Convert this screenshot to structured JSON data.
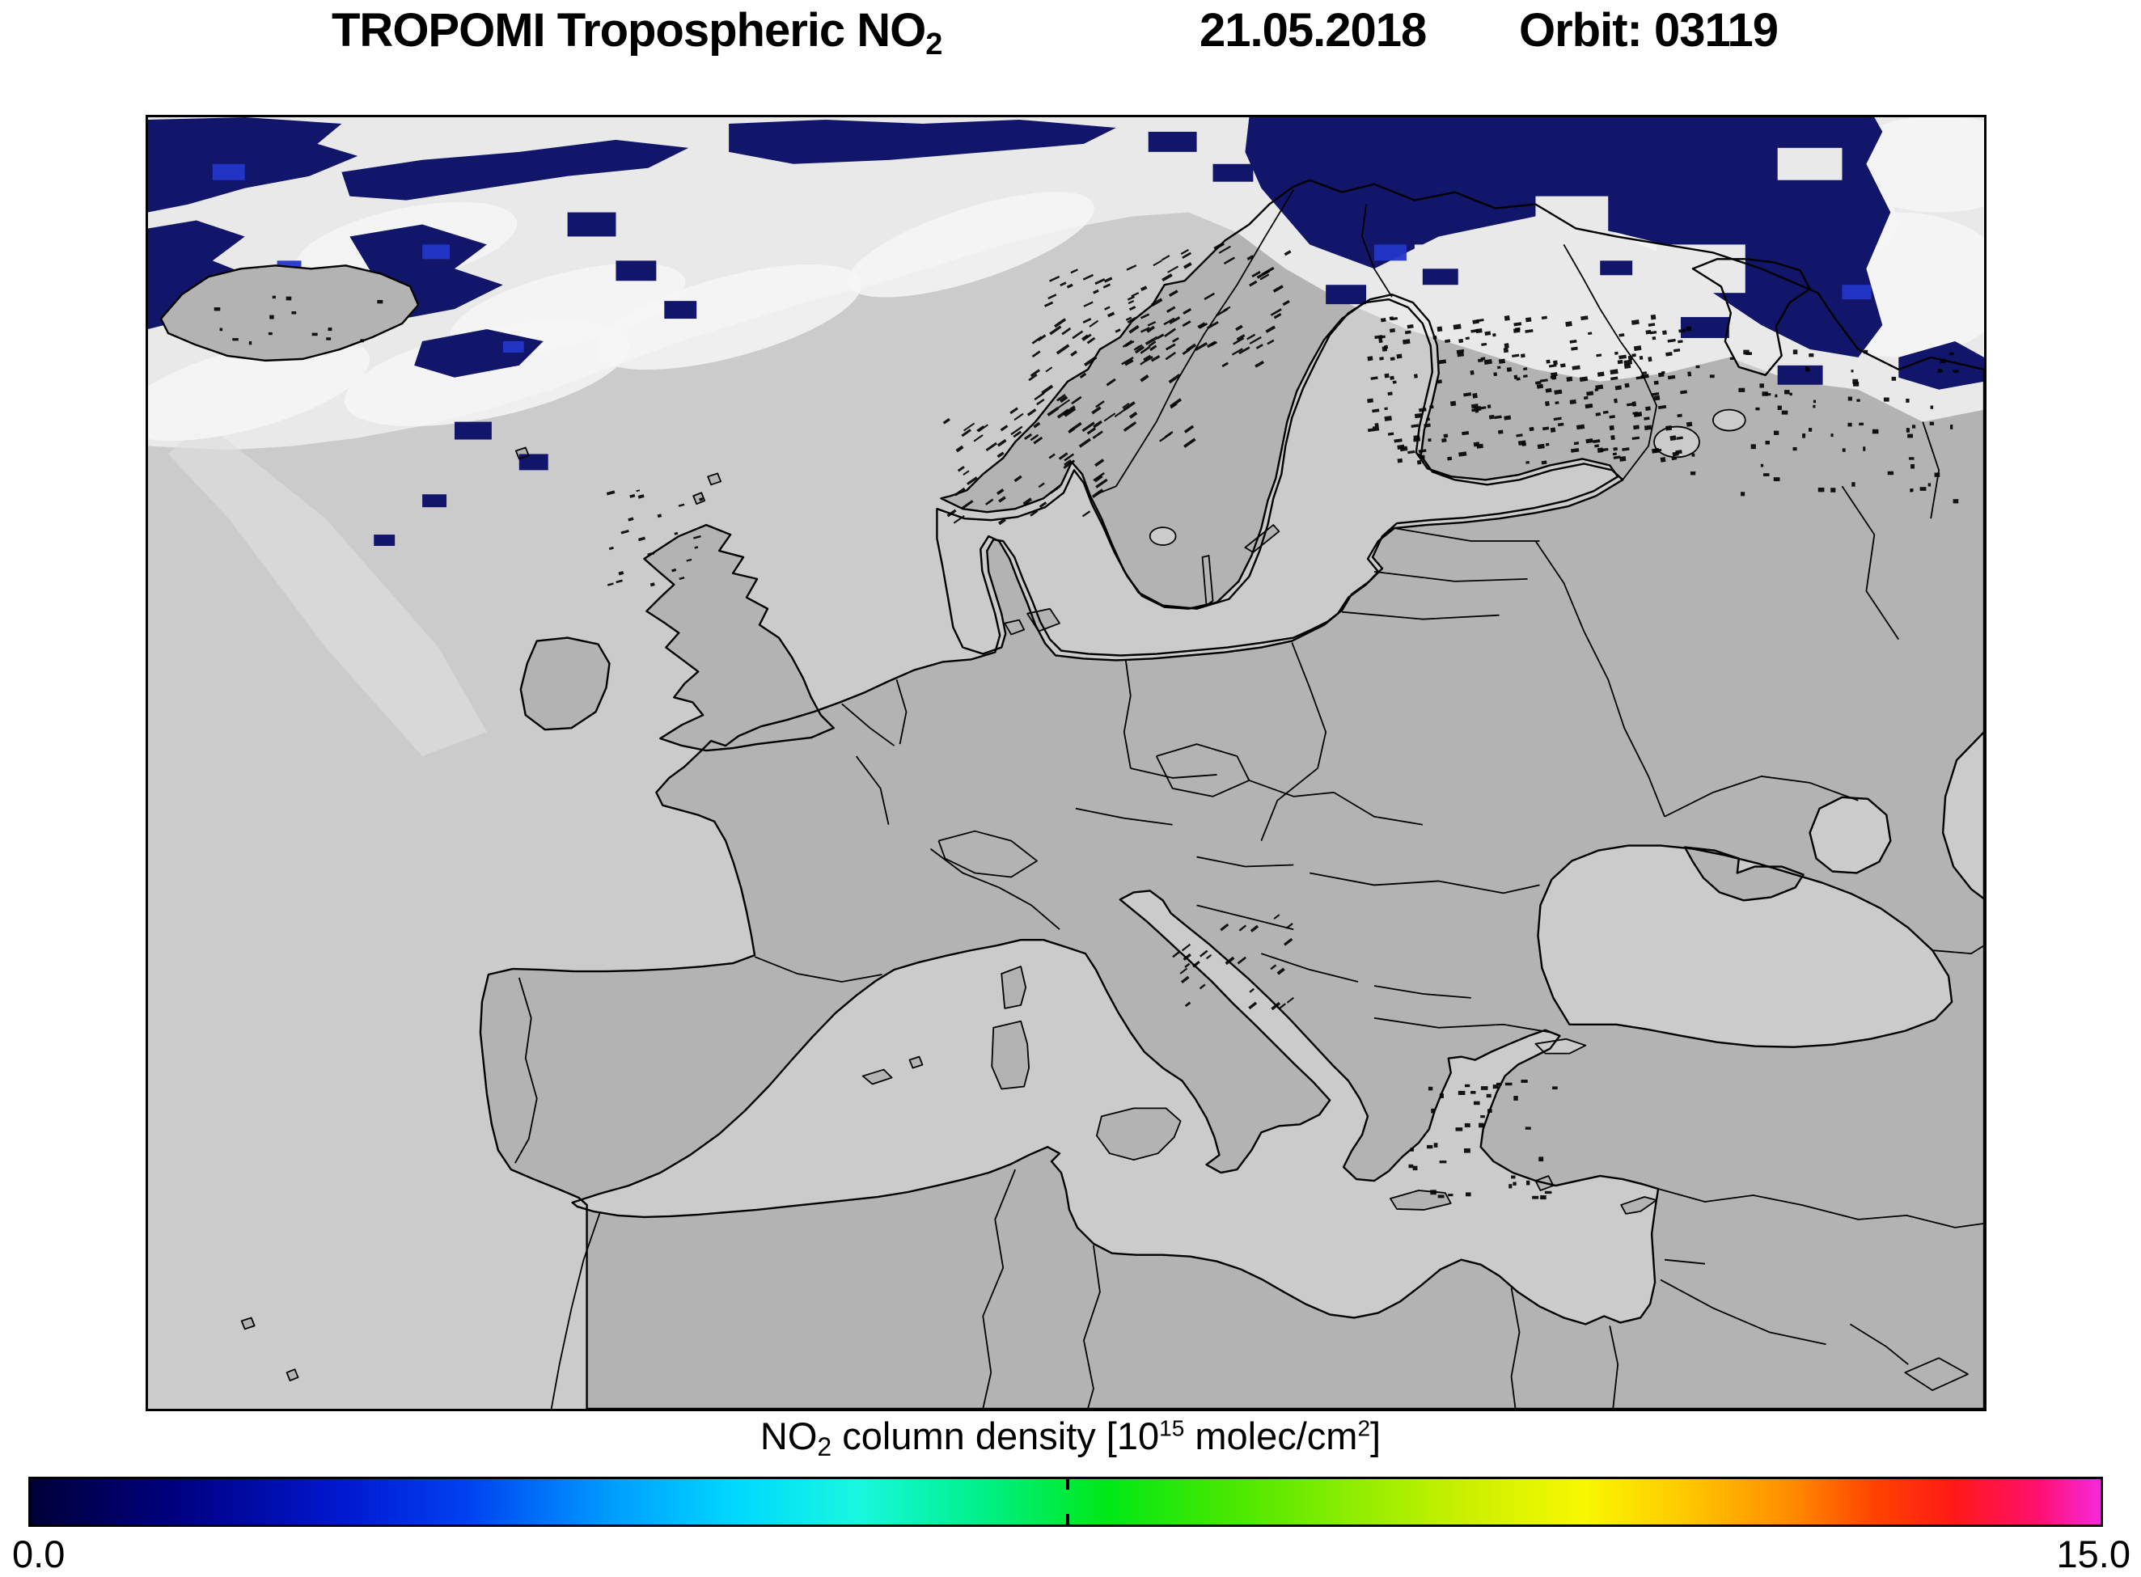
{
  "title": {
    "instrument": "TROPOMI Tropospheric NO",
    "instrument_sub": "2",
    "date": "21.05.2018",
    "orbit": "Orbit: 03119"
  },
  "colorbar": {
    "label_pre": "NO",
    "label_sub": "2",
    "label_mid": " column density [10",
    "label_sup1": "15",
    "label_unit": " molec/cm",
    "label_sup2": "2",
    "label_end": "]",
    "min": "0.0",
    "max": "15.0"
  },
  "colors": {
    "sea": "#cbcbcb",
    "land": "#b3b3b3",
    "cloud": "#e9e9e9",
    "swath_navy": "#11166b",
    "swath_blue": "#2436c8",
    "gradient": [
      "#000038 0%",
      "#000080 7%",
      "#0018d0 15%",
      "#0040f0 21%",
      "#009cff 28%",
      "#00d8ff 34%",
      "#18f8e0 40%",
      "#00f088 46%",
      "#00e818 52%",
      "#48e800 58%",
      "#90ee00 64%",
      "#c8f000 69%",
      "#f8f800 75%",
      "#ffc800 80%",
      "#ff8c00 85%",
      "#ff4400 89%",
      "#ff1818 93%",
      "#ff1070 97%",
      "#f828dc 100%"
    ]
  }
}
